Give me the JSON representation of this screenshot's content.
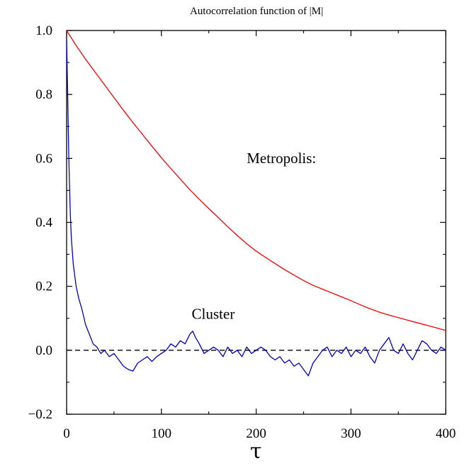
{
  "chart_data": {
    "type": "line",
    "title": "Autocorrelation function of |M|",
    "xlabel": "τ",
    "ylabel": "",
    "xlim": [
      0,
      400
    ],
    "ylim": [
      -0.2,
      1.0
    ],
    "x_ticks": [
      0,
      100,
      200,
      300,
      400
    ],
    "x_tick_labels": [
      "0",
      "100",
      "200",
      "300",
      "400"
    ],
    "y_ticks": [
      -0.2,
      0.0,
      0.2,
      0.4,
      0.6,
      0.8,
      1.0
    ],
    "y_tick_labels": [
      "−0.2",
      "0.0",
      "0.2",
      "0.4",
      "0.6",
      "0.8",
      "1.0"
    ],
    "grid": false,
    "reference_line": {
      "y": 0.0,
      "style": "dashed",
      "color": "#000000"
    },
    "annotations": [
      {
        "text": "Metropolis:",
        "x": 190,
        "y": 0.585
      },
      {
        "text": "Cluster",
        "x": 132,
        "y": 0.098
      }
    ],
    "series": [
      {
        "color": "#ff0000",
        "x": [
          0,
          10,
          20,
          30,
          40,
          50,
          60,
          70,
          80,
          90,
          100,
          110,
          120,
          130,
          140,
          150,
          160,
          170,
          180,
          190,
          200,
          210,
          220,
          230,
          240,
          250,
          260,
          270,
          280,
          290,
          300,
          310,
          320,
          330,
          340,
          350,
          360,
          370,
          380,
          390,
          400
        ],
        "y": [
          1.0,
          0.953,
          0.91,
          0.87,
          0.83,
          0.79,
          0.75,
          0.712,
          0.675,
          0.638,
          0.602,
          0.568,
          0.535,
          0.502,
          0.472,
          0.443,
          0.415,
          0.386,
          0.359,
          0.333,
          0.31,
          0.29,
          0.271,
          0.252,
          0.235,
          0.218,
          0.203,
          0.191,
          0.179,
          0.167,
          0.155,
          0.142,
          0.13,
          0.119,
          0.11,
          0.102,
          0.094,
          0.086,
          0.078,
          0.07,
          0.062
        ]
      },
      {
        "color": "#0000cc",
        "x": [
          0,
          1,
          2,
          3,
          4,
          5,
          7,
          10,
          13,
          16,
          20,
          24,
          28,
          32,
          36,
          40,
          45,
          50,
          55,
          60,
          65,
          70,
          75,
          80,
          85,
          90,
          95,
          100,
          105,
          110,
          115,
          120,
          125,
          130,
          133,
          136,
          140,
          145,
          150,
          155,
          160,
          165,
          170,
          175,
          180,
          185,
          190,
          195,
          200,
          205,
          210,
          215,
          220,
          225,
          230,
          235,
          240,
          245,
          250,
          255,
          260,
          265,
          270,
          275,
          280,
          285,
          290,
          295,
          300,
          305,
          310,
          315,
          320,
          325,
          330,
          335,
          340,
          345,
          350,
          355,
          360,
          365,
          370,
          375,
          380,
          385,
          390,
          395,
          400
        ],
        "y": [
          0.97,
          0.82,
          0.65,
          0.52,
          0.42,
          0.35,
          0.27,
          0.2,
          0.16,
          0.13,
          0.08,
          0.05,
          0.02,
          0.01,
          -0.01,
          0.0,
          -0.02,
          -0.01,
          -0.03,
          -0.05,
          -0.06,
          -0.065,
          -0.04,
          -0.03,
          -0.02,
          -0.035,
          -0.02,
          -0.01,
          0.0,
          0.02,
          0.01,
          0.03,
          0.02,
          0.05,
          0.06,
          0.04,
          0.02,
          -0.01,
          0.0,
          0.01,
          0.0,
          -0.02,
          0.01,
          -0.01,
          0.0,
          -0.02,
          0.01,
          -0.01,
          0.0,
          0.01,
          0.0,
          -0.02,
          -0.03,
          -0.02,
          -0.04,
          -0.03,
          -0.05,
          -0.04,
          -0.06,
          -0.08,
          -0.04,
          -0.02,
          0.0,
          0.01,
          -0.02,
          0.0,
          -0.01,
          0.01,
          -0.02,
          0.0,
          -0.01,
          0.01,
          -0.02,
          -0.04,
          0.0,
          0.02,
          0.04,
          0.0,
          -0.01,
          0.02,
          -0.01,
          -0.03,
          0.0,
          0.03,
          0.02,
          0.0,
          -0.01,
          0.01,
          0.0
        ]
      }
    ]
  }
}
